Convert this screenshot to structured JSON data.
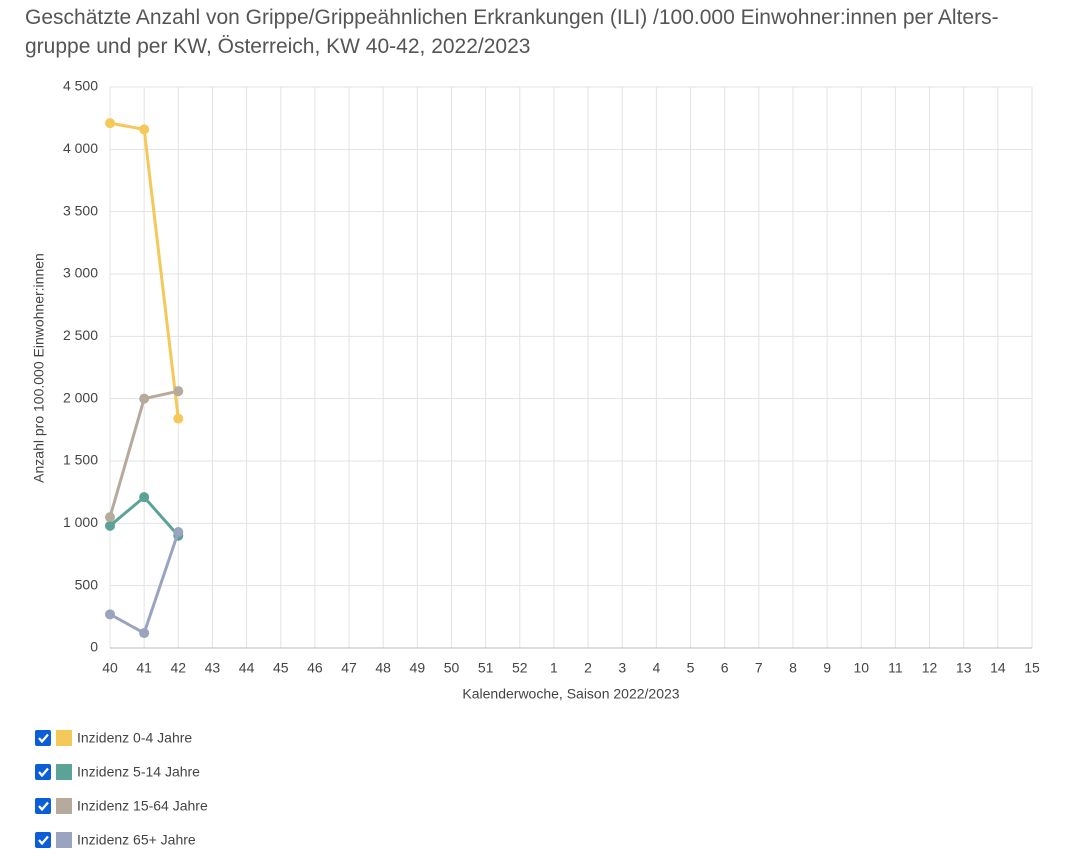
{
  "chart_data": {
    "type": "line",
    "title": [
      "Geschätzte Anzahl von Grippe/Grippeähnlichen Erkrankungen (ILI) /100.000 Einwohner:innen per Alters-",
      "gruppe und per KW, Österreich, KW 40-42, 2022/2023"
    ],
    "x_label": "Kalenderwoche, Saison 2022/2023",
    "y_label": "Anzahl pro 100.000 Einwohner:innen",
    "categories": [
      "40",
      "41",
      "42",
      "43",
      "44",
      "45",
      "46",
      "47",
      "48",
      "49",
      "50",
      "51",
      "52",
      "1",
      "2",
      "3",
      "4",
      "5",
      "6",
      "7",
      "8",
      "9",
      "10",
      "11",
      "12",
      "13",
      "14",
      "15"
    ],
    "series": [
      {
        "name": "Inzidenz 0-4 Jahre",
        "color": "#f5c85a",
        "values": [
          4210,
          4160,
          1840,
          null,
          null,
          null,
          null,
          null,
          null,
          null,
          null,
          null,
          null,
          null,
          null,
          null,
          null,
          null,
          null,
          null,
          null,
          null,
          null,
          null,
          null,
          null,
          null,
          null
        ]
      },
      {
        "name": "Inzidenz 5-14 Jahre",
        "color": "#5ba396",
        "values": [
          980,
          1210,
          900,
          null,
          null,
          null,
          null,
          null,
          null,
          null,
          null,
          null,
          null,
          null,
          null,
          null,
          null,
          null,
          null,
          null,
          null,
          null,
          null,
          null,
          null,
          null,
          null,
          null
        ]
      },
      {
        "name": "Inzidenz 15-64 Jahre",
        "color": "#b5aa9c",
        "values": [
          1050,
          2000,
          2060,
          null,
          null,
          null,
          null,
          null,
          null,
          null,
          null,
          null,
          null,
          null,
          null,
          null,
          null,
          null,
          null,
          null,
          null,
          null,
          null,
          null,
          null,
          null,
          null,
          null
        ]
      },
      {
        "name": "Inzidenz 65+ Jahre",
        "color": "#9aa4c0",
        "values": [
          270,
          120,
          930,
          null,
          null,
          null,
          null,
          null,
          null,
          null,
          null,
          null,
          null,
          null,
          null,
          null,
          null,
          null,
          null,
          null,
          null,
          null,
          null,
          null,
          null,
          null,
          null,
          null
        ]
      }
    ],
    "ylim": [
      0,
      4500
    ],
    "yticks": [
      0,
      500,
      {
        "value": 1000,
        "label": "1 000"
      },
      {
        "value": 1500,
        "label": "1 500"
      },
      {
        "value": 2000,
        "label": "2 000"
      },
      {
        "value": 2500,
        "label": "2 500"
      },
      {
        "value": 3000,
        "label": "3 000"
      },
      {
        "value": 3500,
        "label": "3 500"
      },
      {
        "value": 4000,
        "label": "4 000"
      },
      {
        "value": 4500,
        "label": "4 500"
      }
    ],
    "grid": true,
    "legend": "bottom-left"
  }
}
